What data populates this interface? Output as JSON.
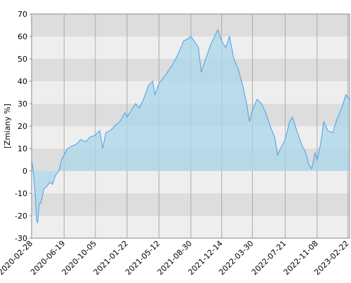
{
  "chart_data": {
    "type": "area",
    "y_label": "[Zmiany %]",
    "x": [
      "2020-02-28",
      "2020-03-02",
      "2020-03-06",
      "2020-03-12",
      "2020-03-16",
      "2020-03-20",
      "2020-03-25",
      "2020-04-01",
      "2020-04-10",
      "2020-04-20",
      "2020-05-01",
      "2020-05-10",
      "2020-05-20",
      "2020-06-01",
      "2020-06-10",
      "2020-06-19",
      "2020-07-01",
      "2020-07-15",
      "2020-08-01",
      "2020-08-15",
      "2020-09-01",
      "2020-09-15",
      "2020-10-05",
      "2020-10-20",
      "2020-10-30",
      "2020-11-10",
      "2020-11-25",
      "2020-12-10",
      "2020-12-28",
      "2021-01-15",
      "2021-01-22",
      "2021-02-05",
      "2021-02-20",
      "2021-03-05",
      "2021-03-20",
      "2021-04-05",
      "2021-04-20",
      "2021-04-28",
      "2021-05-12",
      "2021-05-30",
      "2021-06-15",
      "2021-07-01",
      "2021-07-20",
      "2021-08-05",
      "2021-08-20",
      "2021-08-30",
      "2021-09-10",
      "2021-09-25",
      "2021-10-05",
      "2021-10-20",
      "2021-11-05",
      "2021-11-20",
      "2021-12-01",
      "2021-12-14",
      "2021-12-28",
      "2022-01-10",
      "2022-01-25",
      "2022-02-10",
      "2022-02-25",
      "2022-03-10",
      "2022-03-20",
      "2022-03-30",
      "2022-04-15",
      "2022-04-30",
      "2022-05-15",
      "2022-05-30",
      "2022-06-15",
      "2022-06-25",
      "2022-07-05",
      "2022-07-21",
      "2022-08-05",
      "2022-08-15",
      "2022-08-30",
      "2022-09-15",
      "2022-09-30",
      "2022-10-10",
      "2022-10-20",
      "2022-11-01",
      "2022-11-08",
      "2022-11-20",
      "2022-12-01",
      "2022-12-15",
      "2023-01-01",
      "2023-01-15",
      "2023-02-01",
      "2023-02-15",
      "2023-02-28"
    ],
    "values": [
      4,
      3,
      -2,
      -12,
      -22,
      -23,
      -15,
      -14,
      -8,
      -7,
      -5,
      -6,
      -2,
      0,
      5,
      7,
      10,
      11,
      12,
      14,
      13,
      15,
      16,
      18,
      10,
      17,
      18,
      20,
      22,
      26,
      24,
      27,
      30,
      28,
      32,
      38,
      40,
      34,
      39,
      42,
      45,
      48,
      53,
      58,
      59,
      60,
      58,
      55,
      44,
      50,
      56,
      60,
      63,
      58,
      55,
      60,
      50,
      45,
      38,
      30,
      22,
      27,
      32,
      30,
      26,
      20,
      15,
      7,
      10,
      14,
      22,
      24,
      18,
      12,
      8,
      3,
      1,
      8,
      5,
      12,
      22,
      18,
      17,
      23,
      28,
      34,
      32
    ],
    "line_color": "#4a9fe8",
    "fill_color": "#a9d6ea",
    "xlim": [
      "2020-02-28",
      "2023-02-28"
    ],
    "xticks": [
      "2020-02-28",
      "2020-06-19",
      "2020-10-05",
      "2021-01-22",
      "2021-05-12",
      "2021-08-30",
      "2021-12-14",
      "2022-03-30",
      "2022-07-21",
      "2022-11-08",
      "2023-02-22"
    ],
    "ylim": [
      -30,
      70
    ],
    "yticks": [
      -30,
      -20,
      -10,
      0,
      10,
      20,
      30,
      40,
      50,
      60,
      70
    ],
    "grid": true
  }
}
